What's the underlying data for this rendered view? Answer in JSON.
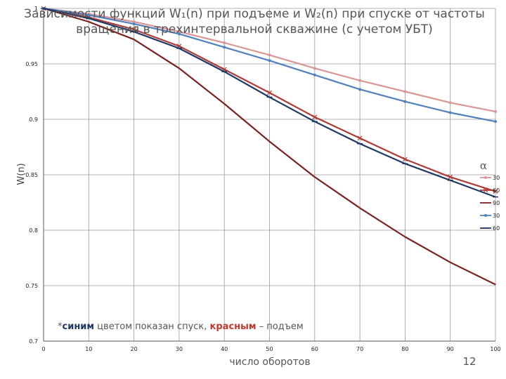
{
  "chart_data": {
    "type": "line",
    "title_line1": "Зависимости функций W₁(n) при подъеме и W₂(n) при спуске от частоты",
    "title_line2": "вращения в трехинтервальной скважине (с учетом УБТ)",
    "xlabel": "число оборотов",
    "ylabel": "W(n)",
    "xlim": [
      0,
      100
    ],
    "ylim": [
      0.7,
      1.0
    ],
    "x_ticks": [
      0,
      10,
      20,
      30,
      40,
      50,
      60,
      70,
      80,
      90,
      100
    ],
    "y_ticks": [
      0.7,
      0.75,
      0.8,
      0.85,
      0.9,
      0.95,
      1
    ],
    "y_tick_labels": [
      "0.7",
      "0.75",
      "0.8",
      "0.85",
      "0.9",
      "0.95",
      "1"
    ],
    "grid": true,
    "x": [
      0,
      10,
      20,
      30,
      40,
      50,
      60,
      70,
      80,
      90,
      100
    ],
    "legend_title": "α",
    "legend_position": "right",
    "series": [
      {
        "name": "30",
        "color": "#d99694",
        "marker": "dot",
        "values": [
          1.0,
          0.995,
          0.988,
          0.979,
          0.969,
          0.958,
          0.946,
          0.935,
          0.925,
          0.915,
          0.907
        ]
      },
      {
        "name": "60",
        "color": "#b03a35",
        "marker": "x",
        "values": [
          1.0,
          0.992,
          0.981,
          0.966,
          0.945,
          0.924,
          0.902,
          0.883,
          0.864,
          0.848,
          0.835
        ]
      },
      {
        "name": "90",
        "color": "#7b2323",
        "marker": "none",
        "values": [
          1.0,
          0.988,
          0.972,
          0.946,
          0.914,
          0.88,
          0.848,
          0.82,
          0.794,
          0.771,
          0.751
        ]
      },
      {
        "name": "30",
        "color": "#4f81bd",
        "marker": "dot",
        "values": [
          1.0,
          0.994,
          0.986,
          0.977,
          0.965,
          0.953,
          0.94,
          0.927,
          0.916,
          0.906,
          0.898
        ]
      },
      {
        "name": "60",
        "color": "#1f3864",
        "marker": "dash",
        "values": [
          1.0,
          0.991,
          0.979,
          0.964,
          0.943,
          0.92,
          0.898,
          0.878,
          0.86,
          0.845,
          0.83
        ]
      }
    ]
  },
  "note": {
    "prefix": "*",
    "blue_word": "синим",
    "middle": " цветом показан спуск, ",
    "red_word": "красным",
    "suffix": " – подъем"
  },
  "page_number": "12"
}
